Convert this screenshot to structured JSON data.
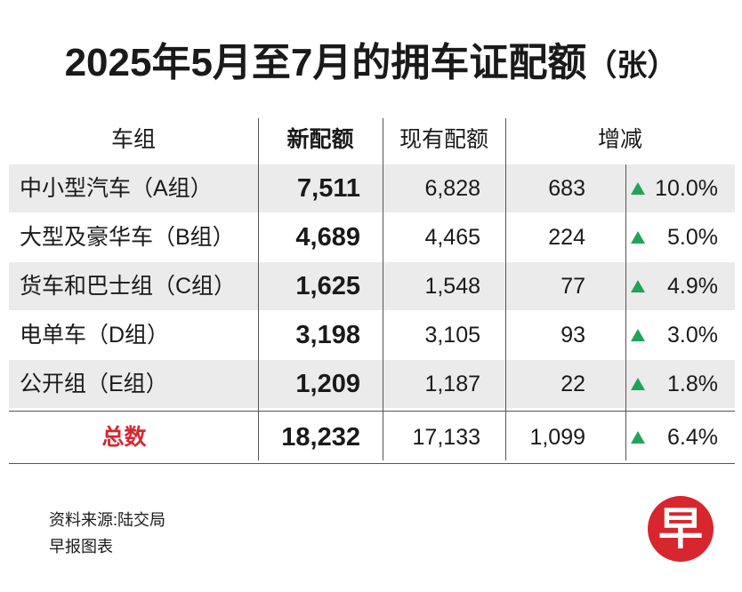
{
  "header": {
    "title": "2025年5月至7月的拥车证配额",
    "unit": "（张）"
  },
  "table": {
    "columns": [
      "车组",
      "新配额",
      "现有配额",
      "增减"
    ],
    "rows": [
      [
        "中小型汽车（A组）",
        "7,511",
        "6,828",
        "683",
        "10.0%"
      ],
      [
        "大型及豪华车（B组）",
        "4,689",
        "4,465",
        "224",
        "5.0%"
      ],
      [
        "货车和巴士组（C组）",
        "1,625",
        "1,548",
        "77",
        "4.9%"
      ],
      [
        "电单车（D组）",
        "3,198",
        "3,105",
        "93",
        "3.0%"
      ],
      [
        "公开组（E组）",
        "1,209",
        "1,187",
        "22",
        "1.8%"
      ]
    ],
    "total": [
      "总数",
      "18,232",
      "17,133",
      "1,099",
      "6.4%"
    ]
  },
  "footer": {
    "source": "资料来源:陆交局",
    "credit": "早报图表",
    "logo": "早"
  }
}
